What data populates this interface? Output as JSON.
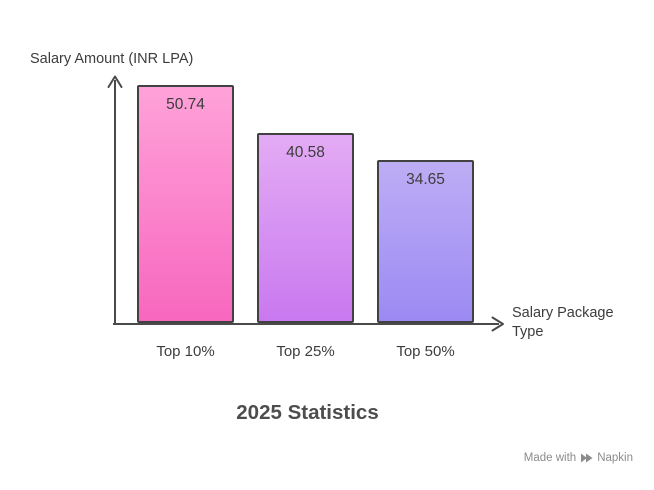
{
  "chart_data": {
    "type": "bar",
    "title": "2025 Statistics",
    "ylabel": "Salary Amount (INR LPA)",
    "xlabel": "Salary Package Type",
    "categories": [
      "Top 10%",
      "Top 25%",
      "Top 50%"
    ],
    "values": [
      50.74,
      40.58,
      34.65
    ],
    "ylim": [
      0,
      50.74
    ],
    "grid": false,
    "legend": false,
    "bar_colors": [
      {
        "top": "#ffa2d9",
        "bottom": "#f767be"
      },
      {
        "top": "#e3abf4",
        "bottom": "#c979ef"
      },
      {
        "top": "#bdadf4",
        "bottom": "#9c8af3"
      }
    ],
    "bar_border_color": "#414141",
    "axis_color": "#4a4a4a",
    "label_color": "#3d3d3d",
    "title_color": "#4d4d4d"
  },
  "watermark": {
    "prefix": "Made with",
    "brand": "Napkin",
    "color": "#8c8c8c"
  }
}
